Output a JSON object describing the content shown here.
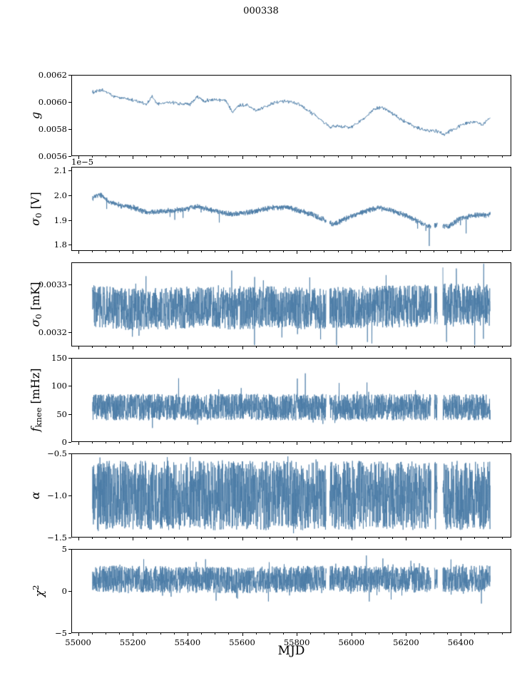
{
  "chart_data": {
    "type": "line",
    "title": "000338",
    "xlabel": "MJD",
    "x_range": [
      54975,
      56585
    ],
    "x_data_range": [
      55050,
      56510
    ],
    "x_minor_step": 50,
    "x_ticks": [
      {
        "v": 55000,
        "label": "55000"
      },
      {
        "v": 55200,
        "label": "55200"
      },
      {
        "v": 55400,
        "label": "55400"
      },
      {
        "v": 55600,
        "label": "55600"
      },
      {
        "v": 55800,
        "label": "55800"
      },
      {
        "v": 56000,
        "label": "56000"
      },
      {
        "v": 56200,
        "label": "56200"
      },
      {
        "v": 56400,
        "label": "56400"
      }
    ],
    "line_color": "#4a7ba6",
    "gaps": [
      [
        55908,
        55921
      ],
      [
        56293,
        56305
      ],
      [
        56316,
        56336
      ]
    ],
    "panels": [
      {
        "key": "g",
        "ylabel": [
          {
            "t": "g",
            "it": true
          }
        ],
        "ylim": [
          0.0056,
          0.0062
        ],
        "yticks": [
          {
            "v": 0.0056,
            "label": "0.0056"
          },
          {
            "v": 0.0058,
            "label": "0.0058"
          },
          {
            "v": 0.006,
            "label": "0.0060"
          },
          {
            "v": 0.0062,
            "label": "0.0062"
          }
        ],
        "n": 800,
        "amp": 1.6e-05,
        "dist": "t",
        "lw": 1.0,
        "gaps_apply": false,
        "trend": [
          [
            55050,
            0.006075
          ],
          [
            55090,
            0.00609
          ],
          [
            55130,
            0.00604
          ],
          [
            55170,
            0.00603
          ],
          [
            55210,
            0.00601
          ],
          [
            55250,
            0.005985
          ],
          [
            55268,
            0.00604
          ],
          [
            55290,
            0.005985
          ],
          [
            55330,
            0.006
          ],
          [
            55370,
            0.00599
          ],
          [
            55410,
            0.005985
          ],
          [
            55435,
            0.00604
          ],
          [
            55460,
            0.00601
          ],
          [
            55500,
            0.00602
          ],
          [
            55540,
            0.00601
          ],
          [
            55565,
            0.00593
          ],
          [
            55585,
            0.005975
          ],
          [
            55620,
            0.00598
          ],
          [
            55655,
            0.005935
          ],
          [
            55690,
            0.005975
          ],
          [
            55720,
            0.006
          ],
          [
            55760,
            0.00601
          ],
          [
            55800,
            0.00599
          ],
          [
            55840,
            0.00594
          ],
          [
            55880,
            0.00588
          ],
          [
            55920,
            0.005815
          ],
          [
            55960,
            0.00582
          ],
          [
            56000,
            0.00581
          ],
          [
            56040,
            0.00587
          ],
          [
            56080,
            0.00594
          ],
          [
            56110,
            0.005965
          ],
          [
            56150,
            0.005915
          ],
          [
            56190,
            0.00586
          ],
          [
            56230,
            0.005815
          ],
          [
            56270,
            0.00579
          ],
          [
            56310,
            0.005785
          ],
          [
            56340,
            0.00576
          ],
          [
            56370,
            0.00579
          ],
          [
            56410,
            0.005835
          ],
          [
            56450,
            0.005855
          ],
          [
            56480,
            0.005825
          ],
          [
            56510,
            0.005885
          ]
        ],
        "spike": {
          "rate": 0,
          "up": 0,
          "down": 0
        }
      },
      {
        "key": "sigma0-v",
        "ylabel": [
          {
            "t": "σ",
            "it": true
          },
          {
            "t": "0",
            "sub": true
          },
          {
            "t": " [V]"
          }
        ],
        "offset_label": "1e−5",
        "ylim": [
          1.775,
          2.115
        ],
        "yticks": [
          {
            "v": 1.8,
            "label": "1.8"
          },
          {
            "v": 1.9,
            "label": "1.9"
          },
          {
            "v": 2.0,
            "label": "2.0"
          },
          {
            "v": 2.1,
            "label": "2.1"
          }
        ],
        "n": 2600,
        "amp": 0.013,
        "dist": "t",
        "lw": 0.8,
        "gaps_apply": true,
        "trend": [
          [
            55050,
            1.99
          ],
          [
            55075,
            2.005
          ],
          [
            55110,
            1.975
          ],
          [
            55150,
            1.96
          ],
          [
            55200,
            1.95
          ],
          [
            55250,
            1.93
          ],
          [
            55300,
            1.935
          ],
          [
            55350,
            1.938
          ],
          [
            55400,
            1.945
          ],
          [
            55435,
            1.955
          ],
          [
            55470,
            1.945
          ],
          [
            55510,
            1.932
          ],
          [
            55560,
            1.925
          ],
          [
            55610,
            1.928
          ],
          [
            55660,
            1.938
          ],
          [
            55710,
            1.95
          ],
          [
            55760,
            1.952
          ],
          [
            55810,
            1.938
          ],
          [
            55860,
            1.92
          ],
          [
            55900,
            1.9
          ],
          [
            55935,
            1.88
          ],
          [
            55970,
            1.9
          ],
          [
            56010,
            1.92
          ],
          [
            56060,
            1.938
          ],
          [
            56100,
            1.95
          ],
          [
            56150,
            1.938
          ],
          [
            56200,
            1.918
          ],
          [
            56250,
            1.892
          ],
          [
            56285,
            1.872
          ],
          [
            56320,
            1.88
          ],
          [
            56355,
            1.87
          ],
          [
            56400,
            1.905
          ],
          [
            56450,
            1.918
          ],
          [
            56510,
            1.92
          ]
        ],
        "spike": {
          "rate": 0.012,
          "up": 0.012,
          "down": 0.07
        }
      },
      {
        "key": "sigma0-mk",
        "ylabel": [
          {
            "t": "σ",
            "it": true
          },
          {
            "t": "0",
            "sub": true
          },
          {
            "t": " [mK]"
          }
        ],
        "ylim": [
          0.00317,
          0.003346
        ],
        "yticks": [
          {
            "v": 0.0032,
            "label": "0.0032"
          },
          {
            "v": 0.0033,
            "label": "0.0033"
          }
        ],
        "n": 2600,
        "amp": 4.5e-05,
        "dist": "u",
        "lw": 0.8,
        "gaps_apply": true,
        "trend": [
          [
            55050,
            0.003256
          ],
          [
            55150,
            0.003249
          ],
          [
            55250,
            0.003247
          ],
          [
            55400,
            0.003252
          ],
          [
            55550,
            0.003249
          ],
          [
            55700,
            0.003252
          ],
          [
            55850,
            0.00325
          ],
          [
            56000,
            0.003252
          ],
          [
            56150,
            0.003253
          ],
          [
            56300,
            0.003256
          ],
          [
            56400,
            0.003259
          ],
          [
            56510,
            0.003257
          ]
        ],
        "spike": {
          "rate": 0.03,
          "up": 6e-05,
          "down": 6e-05
        }
      },
      {
        "key": "fknee",
        "ylabel": [
          {
            "t": "f",
            "it": true
          },
          {
            "t": "knee",
            "sub": true
          },
          {
            "t": " [mHz]"
          }
        ],
        "ylim": [
          0,
          150
        ],
        "yticks": [
          {
            "v": 0,
            "label": "0"
          },
          {
            "v": 50,
            "label": "50"
          },
          {
            "v": 100,
            "label": "100"
          },
          {
            "v": 150,
            "label": "150"
          }
        ],
        "n": 2600,
        "amp": 24,
        "dist": "u",
        "lw": 0.8,
        "gaps_apply": true,
        "trend": [
          [
            55050,
            62
          ],
          [
            56510,
            62
          ]
        ],
        "spike": {
          "rate": 0.02,
          "up": 45,
          "down": 22
        }
      },
      {
        "key": "alpha",
        "ylabel": [
          {
            "t": "α",
            "it": true
          }
        ],
        "ylim": [
          -1.5,
          -0.5
        ],
        "yticks": [
          {
            "v": -1.5,
            "label": "−1.5"
          },
          {
            "v": -1.0,
            "label": "−1.0"
          },
          {
            "v": -0.5,
            "label": "−0.5"
          }
        ],
        "n": 2600,
        "amp": 0.42,
        "dist": "u",
        "lw": 0.8,
        "gaps_apply": true,
        "trend": [
          [
            55050,
            -1.0
          ],
          [
            56510,
            -1.0
          ]
        ],
        "spike": {
          "rate": 0.05,
          "up": 0.1,
          "down": 0.1
        }
      },
      {
        "key": "chi2",
        "ylabel": [
          {
            "t": "χ",
            "it": true
          },
          {
            "t": "2",
            "sup": true
          }
        ],
        "ylim": [
          -5,
          5
        ],
        "yticks": [
          {
            "v": -5,
            "label": "−5"
          },
          {
            "v": 0,
            "label": "0"
          },
          {
            "v": 5,
            "label": "5"
          }
        ],
        "n": 2600,
        "amp": 1.6,
        "dist": "u",
        "lw": 0.8,
        "gaps_apply": true,
        "trend": [
          [
            55050,
            1.5
          ],
          [
            55300,
            1.4
          ],
          [
            55600,
            1.3
          ],
          [
            55900,
            1.5
          ],
          [
            56200,
            1.4
          ],
          [
            56510,
            1.5
          ]
        ],
        "spike": {
          "rate": 0.05,
          "up": 1.3,
          "down": 1.6
        }
      }
    ]
  }
}
